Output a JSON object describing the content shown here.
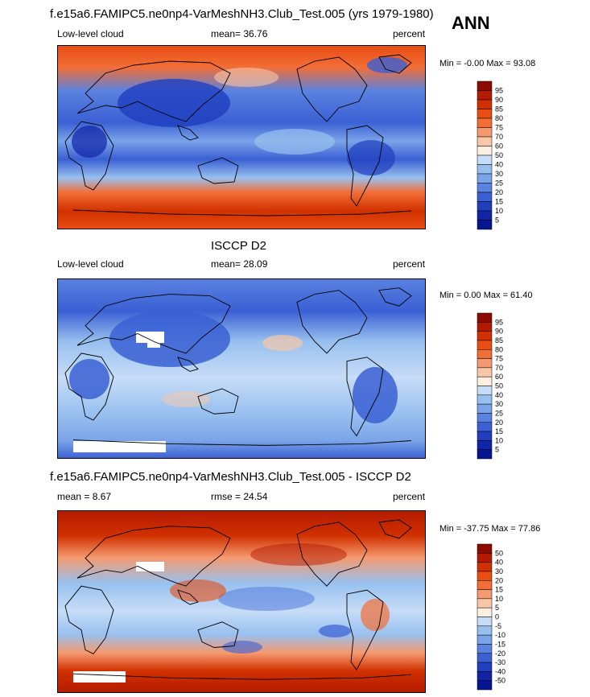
{
  "chart_data": {
    "type": "heatmap",
    "season": "ANN",
    "panels": [
      {
        "id": "model",
        "title": "f.e15a6.FAMIPC5.ne0np4-VarMeshNH3.Club_Test.005 (yrs 1979-1980)",
        "left_label": "Low-level cloud",
        "center_label": "mean=  36.76",
        "right_label": "percent",
        "minmax": "Min = -0.00 Max =  93.08",
        "levels": [
          "95",
          "90",
          "85",
          "80",
          "75",
          "70",
          "60",
          "50",
          "40",
          "30",
          "25",
          "20",
          "15",
          "10",
          "5"
        ],
        "colors": [
          "#8c0a00",
          "#b31a00",
          "#d13100",
          "#e84d12",
          "#f26e36",
          "#f59a70",
          "#f9c7a8",
          "#fcefe0",
          "#c7dcf7",
          "#98c0ef",
          "#7aa4e8",
          "#5a82e0",
          "#3a60d4",
          "#1f3fbf",
          "#0f24a6",
          "#061590"
        ]
      },
      {
        "id": "obs",
        "title": "ISCCP D2",
        "left_label": "Low-level cloud",
        "center_label": "mean=  28.09",
        "right_label": "percent",
        "minmax": "Min =  0.00 Max =  61.40",
        "levels": [
          "95",
          "90",
          "85",
          "80",
          "75",
          "70",
          "60",
          "50",
          "40",
          "30",
          "25",
          "20",
          "15",
          "10",
          "5"
        ],
        "colors": [
          "#8c0a00",
          "#b31a00",
          "#d13100",
          "#e84d12",
          "#f26e36",
          "#f59a70",
          "#f9c7a8",
          "#fcefe0",
          "#c7dcf7",
          "#98c0ef",
          "#7aa4e8",
          "#5a82e0",
          "#3a60d4",
          "#1f3fbf",
          "#0f24a6",
          "#061590"
        ]
      },
      {
        "id": "diff",
        "title": "f.e15a6.FAMIPC5.ne0np4-VarMeshNH3.Club_Test.005 - ISCCP D2",
        "left_label": "mean =   8.67",
        "center_label": "rmse =  24.54",
        "right_label": "percent",
        "minmax": "Min = -37.75 Max =  77.86",
        "levels": [
          "50",
          "40",
          "30",
          "20",
          "15",
          "10",
          "5",
          "0",
          "-5",
          "-10",
          "-15",
          "-20",
          "-30",
          "-40",
          "-50"
        ],
        "colors": [
          "#8c0a00",
          "#b31a00",
          "#d13100",
          "#e84d12",
          "#f26e36",
          "#f59a70",
          "#f9c7a8",
          "#fcefe0",
          "#c7dcf7",
          "#98c0ef",
          "#7aa4e8",
          "#5a82e0",
          "#3a60d4",
          "#1f3fbf",
          "#0f24a6",
          "#061590"
        ]
      }
    ]
  }
}
